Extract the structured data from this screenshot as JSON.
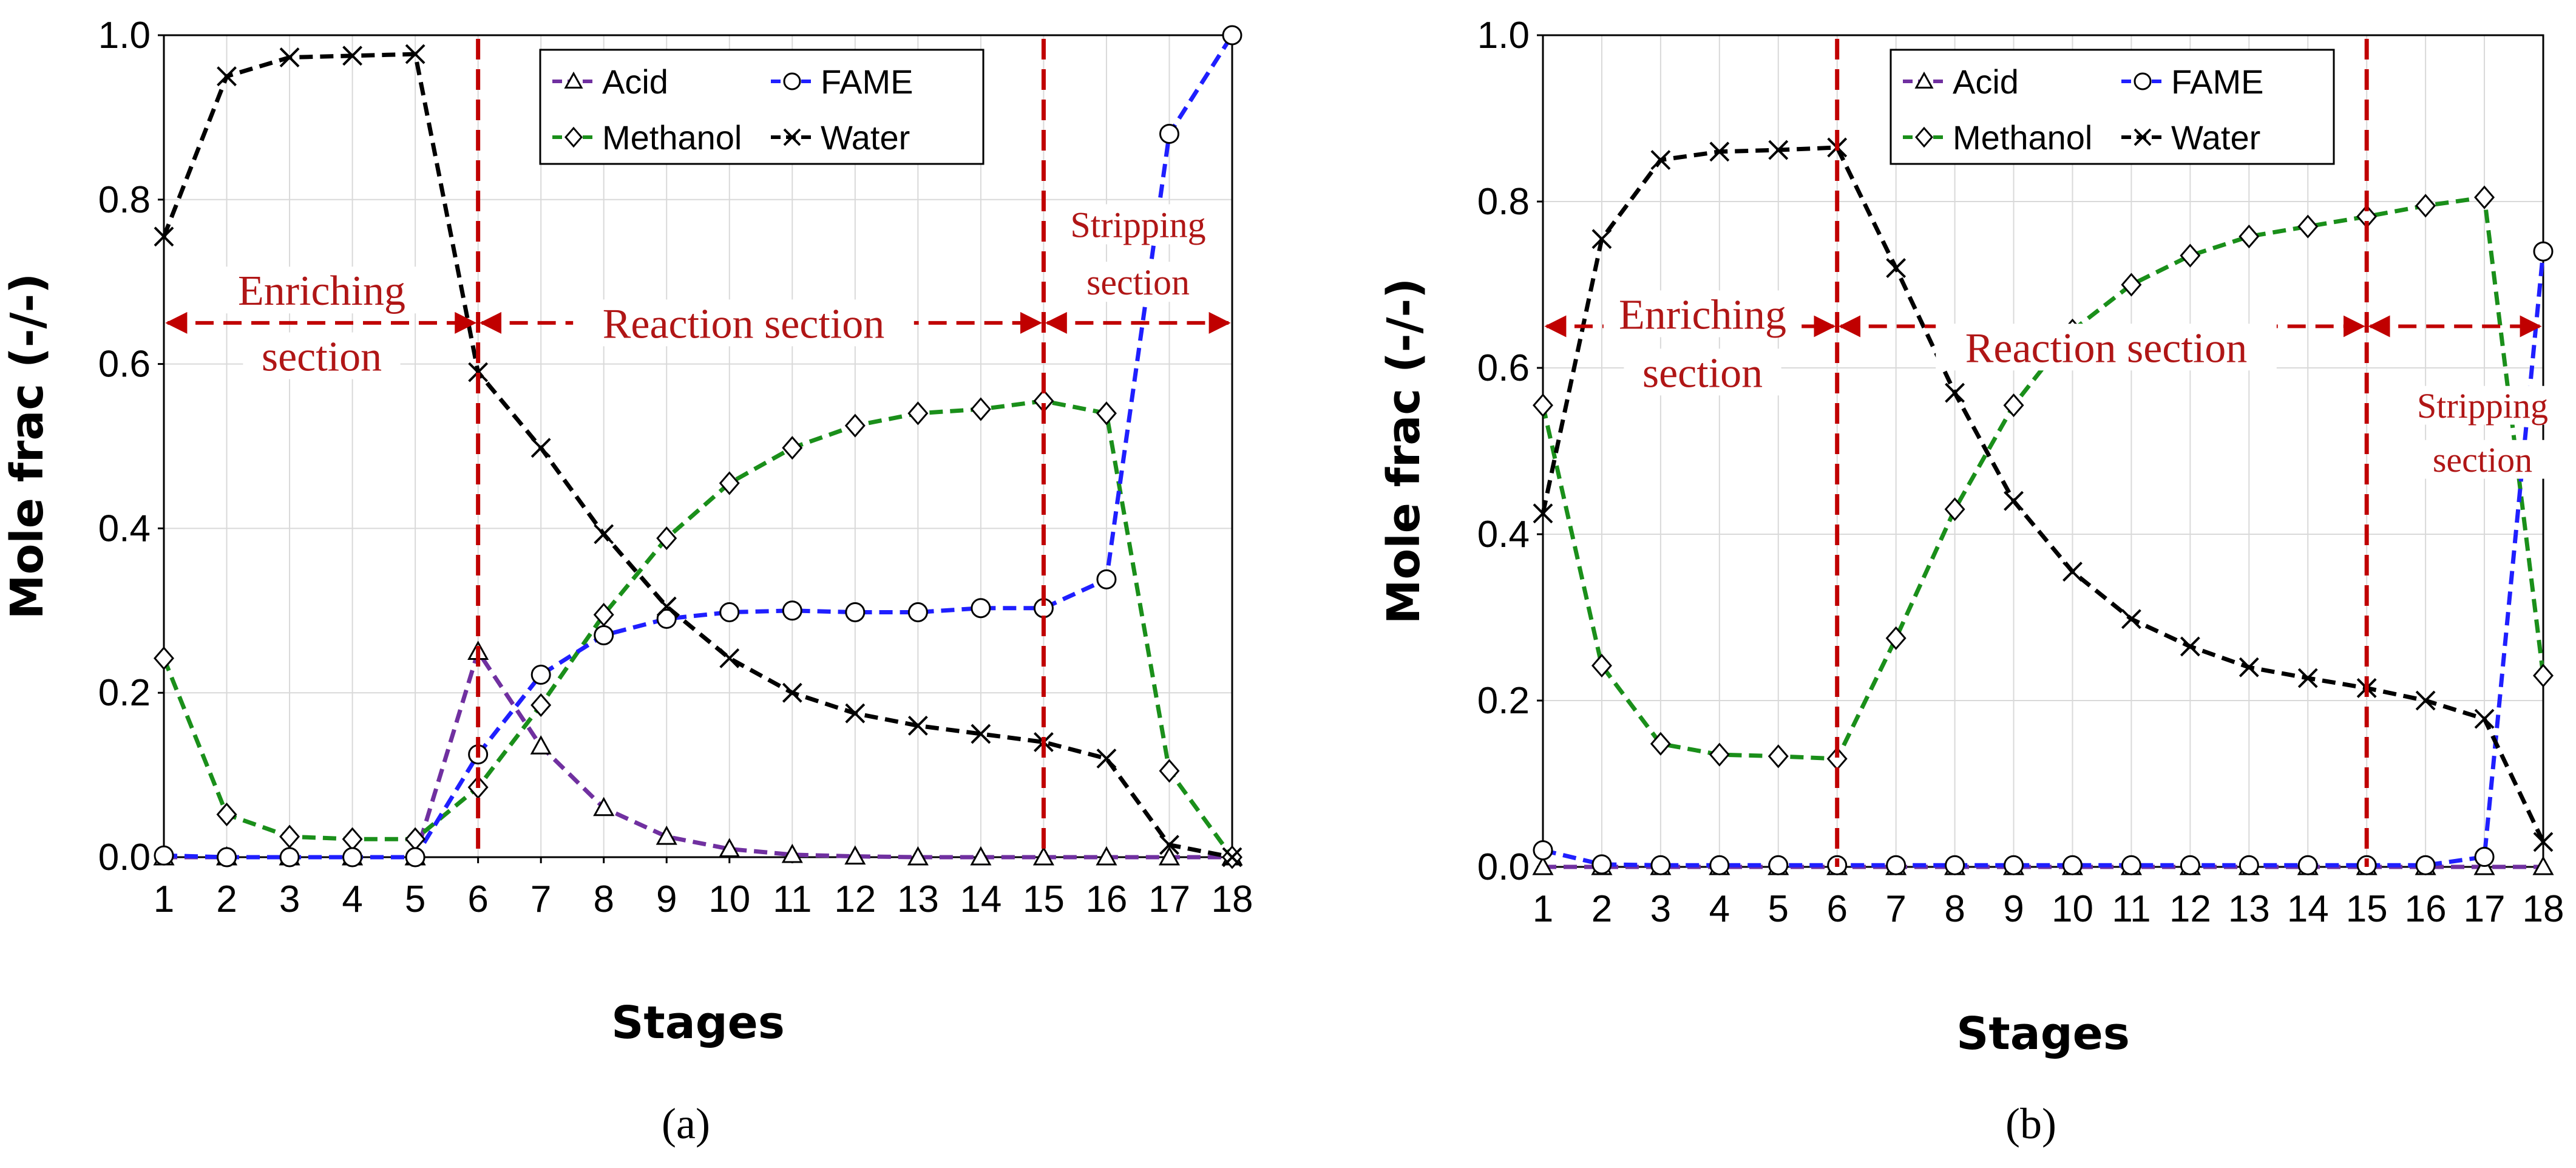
{
  "chart_data": [
    {
      "type": "line",
      "panel_label": "(a)",
      "xlabel": "Stages",
      "ylabel": "Mole frac (-/-)",
      "x": [
        1,
        2,
        3,
        4,
        5,
        6,
        7,
        8,
        9,
        10,
        11,
        12,
        13,
        14,
        15,
        16,
        17,
        18
      ],
      "xlim": [
        1,
        18
      ],
      "ylim": [
        0,
        1
      ],
      "yticks": [
        "0.0",
        "0.2",
        "0.4",
        "0.6",
        "0.8",
        "1.0"
      ],
      "legend_position": "top-center",
      "series": [
        {
          "name": "Acid",
          "color": "#7030a0",
          "marker": "triangle",
          "values": [
            0,
            0,
            0,
            0,
            0,
            0.25,
            0.135,
            0.06,
            0.025,
            0.01,
            0.003,
            0.001,
            0,
            0,
            0,
            0,
            0,
            0
          ]
        },
        {
          "name": "FAME",
          "color": "#1f1fff",
          "marker": "circle",
          "values": [
            0.002,
            0,
            0,
            0,
            0,
            0.125,
            0.222,
            0.27,
            0.29,
            0.298,
            0.3,
            0.298,
            0.298,
            0.303,
            0.303,
            0.338,
            0.88,
            1.0
          ]
        },
        {
          "name": "Methanol",
          "color": "#1a8f1a",
          "marker": "diamond",
          "values": [
            0.242,
            0.052,
            0.025,
            0.022,
            0.022,
            0.085,
            0.185,
            0.295,
            0.388,
            0.455,
            0.498,
            0.525,
            0.54,
            0.545,
            0.555,
            0.54,
            0.105,
            0
          ]
        },
        {
          "name": "Water",
          "color": "#000000",
          "marker": "x",
          "values": [
            0.755,
            0.95,
            0.973,
            0.975,
            0.977,
            0.59,
            0.498,
            0.393,
            0.305,
            0.242,
            0.2,
            0.175,
            0.16,
            0.15,
            0.14,
            0.12,
            0.015,
            0
          ]
        }
      ],
      "sections": [
        {
          "lines": [
            "Enriching",
            "section"
          ]
        },
        {
          "lines": [
            "Reaction section"
          ]
        },
        {
          "lines": [
            "Stripping",
            "section"
          ]
        }
      ]
    },
    {
      "type": "line",
      "panel_label": "(b)",
      "xlabel": "Stages",
      "ylabel": "Mole frac (-/-)",
      "x": [
        1,
        2,
        3,
        4,
        5,
        6,
        7,
        8,
        9,
        10,
        11,
        12,
        13,
        14,
        15,
        16,
        17,
        18
      ],
      "xlim": [
        1,
        18
      ],
      "ylim": [
        0,
        1
      ],
      "yticks": [
        "0.0",
        "0.2",
        "0.4",
        "0.6",
        "0.8",
        "1.0"
      ],
      "legend_position": "top-center",
      "series": [
        {
          "name": "Acid",
          "color": "#7030a0",
          "marker": "triangle",
          "values": [
            0,
            0,
            0,
            0,
            0,
            0,
            0,
            0,
            0,
            0,
            0,
            0,
            0,
            0,
            0,
            0,
            0,
            0
          ]
        },
        {
          "name": "FAME",
          "color": "#1f1fff",
          "marker": "circle",
          "values": [
            0.02,
            0.003,
            0.002,
            0.002,
            0.002,
            0.002,
            0.002,
            0.002,
            0.002,
            0.002,
            0.002,
            0.002,
            0.002,
            0.002,
            0.002,
            0.002,
            0.012,
            0.74
          ]
        },
        {
          "name": "Methanol",
          "color": "#1a8f1a",
          "marker": "diamond",
          "values": [
            0.555,
            0.242,
            0.148,
            0.135,
            0.133,
            0.13,
            0.275,
            0.43,
            0.555,
            0.645,
            0.7,
            0.735,
            0.758,
            0.77,
            0.782,
            0.795,
            0.805,
            0.23
          ]
        },
        {
          "name": "Water",
          "color": "#000000",
          "marker": "x",
          "values": [
            0.425,
            0.755,
            0.85,
            0.86,
            0.862,
            0.865,
            0.72,
            0.57,
            0.44,
            0.355,
            0.298,
            0.265,
            0.24,
            0.227,
            0.215,
            0.2,
            0.178,
            0.03
          ]
        }
      ],
      "sections": [
        {
          "lines": [
            "Enriching",
            "section"
          ]
        },
        {
          "lines": [
            "Reaction section"
          ]
        },
        {
          "lines": [
            "Stripping",
            "section"
          ]
        }
      ]
    }
  ]
}
